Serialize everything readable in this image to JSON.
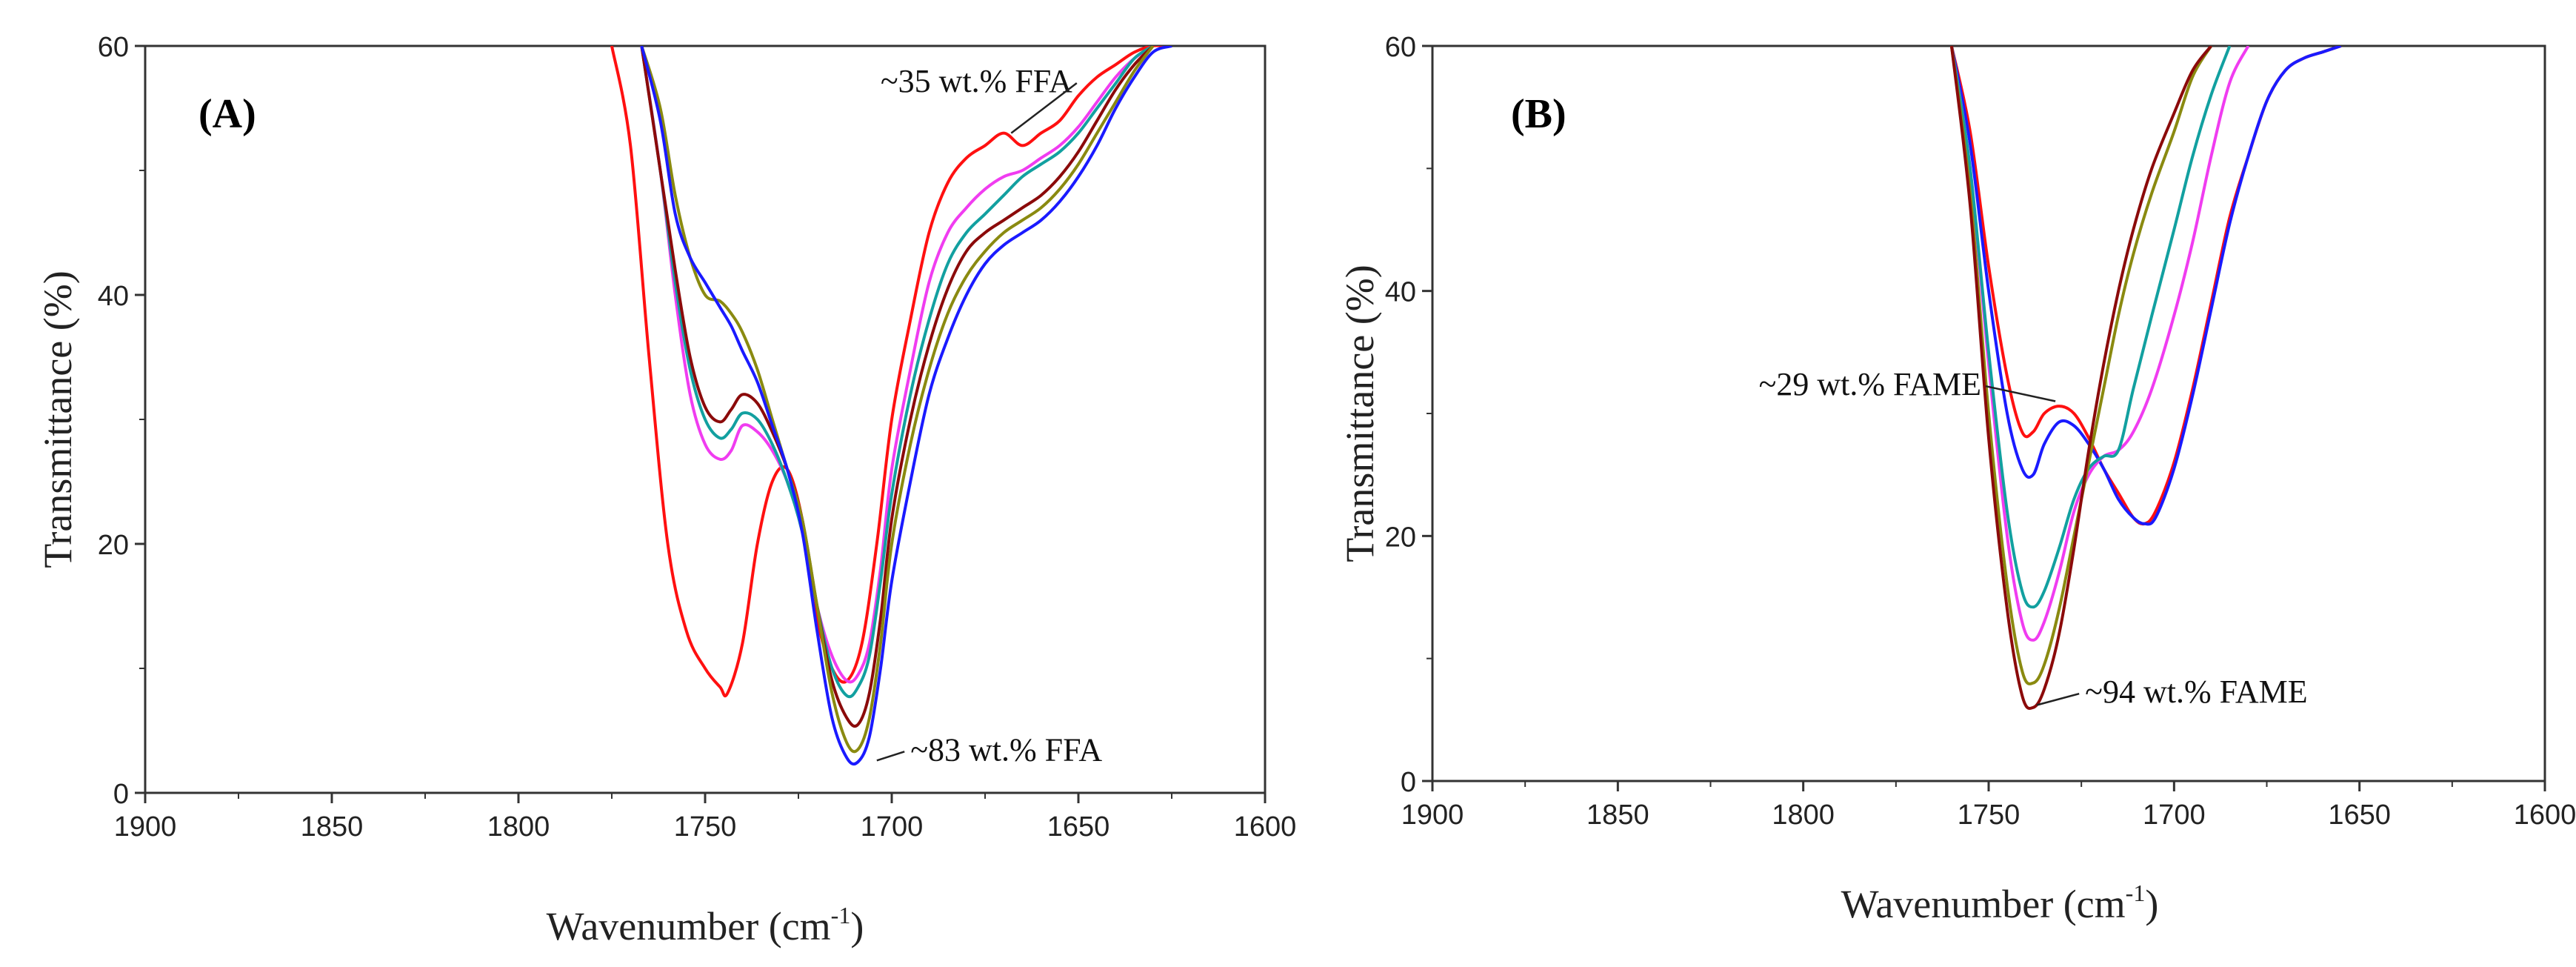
{
  "chart_data": [
    {
      "type": "line",
      "panel_label": "(A)",
      "xlabel": "Wavenumber (cm",
      "xlabel_sup": "-1",
      "xlabel_close": ")",
      "ylabel": "Transmittance (%)",
      "xlim": [
        1900,
        1600
      ],
      "ylim": [
        0,
        60
      ],
      "xticks": [
        1900,
        1850,
        1800,
        1750,
        1700,
        1650,
        1600
      ],
      "yticks": [
        0,
        20,
        40,
        60
      ],
      "annotations": [
        {
          "text": "~35 wt.% FFA",
          "x": 1703,
          "y": 56.3,
          "target_x": 1668,
          "target_y": 53
        },
        {
          "text": "~83 wt.% FFA",
          "x": 1695,
          "y": 2.6,
          "target_x": 1704,
          "target_y": 2.6
        }
      ],
      "series": [
        {
          "name": "~35 wt.% FFA",
          "color": "#ff1010",
          "x": [
            1775,
            1770,
            1765,
            1760,
            1755,
            1750,
            1746,
            1744,
            1740,
            1736,
            1732,
            1728,
            1724,
            1720,
            1716,
            1712,
            1708,
            1704,
            1700,
            1695,
            1690,
            1685,
            1680,
            1675,
            1670,
            1665,
            1660,
            1655,
            1650,
            1645,
            1640,
            1635,
            1630,
            1625
          ],
          "y": [
            60,
            52,
            35,
            20,
            13,
            10,
            8.5,
            8,
            12,
            20,
            25,
            26,
            22,
            14,
            10,
            9,
            12,
            20,
            30,
            38,
            45,
            49,
            51,
            52,
            53,
            52,
            53,
            54,
            56,
            57.5,
            58.5,
            59.5,
            60,
            60
          ]
        },
        {
          "name": "magenta",
          "color": "#f03cf0",
          "x": [
            1767,
            1762,
            1758,
            1754,
            1750,
            1746,
            1743,
            1740,
            1736,
            1732,
            1728,
            1724,
            1720,
            1716,
            1712,
            1709,
            1706,
            1703,
            1700,
            1695,
            1690,
            1685,
            1680,
            1675,
            1670,
            1665,
            1660,
            1655,
            1650,
            1645,
            1640,
            1635,
            1630
          ],
          "y": [
            60,
            50,
            40,
            32,
            28,
            26.8,
            27.5,
            29.5,
            29,
            27.5,
            25,
            21,
            15,
            11,
            9,
            9.5,
            12,
            18,
            26,
            34,
            41,
            45,
            47,
            48.5,
            49.5,
            50,
            51,
            52,
            53.5,
            55.5,
            57.5,
            59,
            60
          ]
        },
        {
          "name": "teal",
          "color": "#12a0a0",
          "x": [
            1767,
            1762,
            1758,
            1754,
            1750,
            1746,
            1743,
            1740,
            1736,
            1732,
            1728,
            1724,
            1720,
            1716,
            1712,
            1709,
            1706,
            1703,
            1700,
            1695,
            1690,
            1685,
            1680,
            1675,
            1670,
            1665,
            1660,
            1655,
            1650,
            1645,
            1640,
            1635,
            1630
          ],
          "y": [
            60,
            50,
            41,
            34,
            30,
            28.5,
            29.2,
            30.5,
            30,
            28,
            25,
            21,
            15,
            10,
            7.8,
            8.5,
            11,
            17,
            24,
            32,
            38,
            42.5,
            45,
            46.5,
            48,
            49.5,
            50.5,
            51.5,
            53,
            55,
            57,
            59,
            60
          ]
        },
        {
          "name": "brown",
          "color": "#8b0a0a",
          "x": [
            1767,
            1762,
            1758,
            1754,
            1750,
            1746,
            1743,
            1740,
            1736,
            1732,
            1728,
            1724,
            1720,
            1716,
            1712,
            1709,
            1706,
            1703,
            1700,
            1695,
            1690,
            1685,
            1680,
            1675,
            1670,
            1665,
            1660,
            1655,
            1650,
            1645,
            1640,
            1635,
            1630
          ],
          "y": [
            60,
            50,
            42,
            35,
            31,
            29.8,
            30.8,
            32,
            31.3,
            29,
            26,
            22,
            15,
            9,
            6,
            5.5,
            8,
            14,
            22,
            30,
            36,
            40.5,
            43.5,
            45,
            46,
            47,
            48,
            49.5,
            51.5,
            54,
            56.5,
            58.5,
            60
          ]
        },
        {
          "name": "olive",
          "color": "#8a8a10",
          "x": [
            1767,
            1762,
            1758,
            1754,
            1750,
            1746,
            1743,
            1740,
            1736,
            1732,
            1728,
            1724,
            1720,
            1716,
            1712,
            1709,
            1706,
            1703,
            1700,
            1695,
            1690,
            1685,
            1680,
            1675,
            1670,
            1665,
            1660,
            1655,
            1650,
            1645,
            1640,
            1635,
            1630
          ],
          "y": [
            60,
            55,
            48,
            43,
            40,
            39.5,
            38.5,
            37,
            34,
            30,
            26,
            22,
            15,
            8,
            4,
            3.5,
            6,
            12,
            20,
            28,
            34,
            38.5,
            41.5,
            43.5,
            45,
            46,
            47,
            48.5,
            50.5,
            53,
            55.5,
            58,
            60
          ]
        },
        {
          "name": "~83 wt.% FFA",
          "color": "#1a1aff",
          "x": [
            1767,
            1762,
            1758,
            1754,
            1750,
            1746,
            1743,
            1740,
            1736,
            1732,
            1728,
            1724,
            1720,
            1716,
            1712,
            1709,
            1706,
            1703,
            1700,
            1695,
            1690,
            1685,
            1680,
            1675,
            1670,
            1665,
            1660,
            1655,
            1650,
            1645,
            1640,
            1635,
            1630,
            1625
          ],
          "y": [
            60,
            54,
            46.5,
            43,
            41,
            39,
            37.5,
            35.5,
            33,
            29.5,
            26,
            21,
            13,
            6,
            2.8,
            2.5,
            4.5,
            10,
            17,
            25,
            32,
            36.5,
            40,
            42.5,
            44,
            45,
            46,
            47.5,
            49.5,
            52,
            55,
            57.5,
            59.5,
            60
          ]
        }
      ]
    },
    {
      "type": "line",
      "panel_label": "(B)",
      "xlabel": "Wavenumber (cm",
      "xlabel_sup": "-1",
      "xlabel_close": ")",
      "ylabel": "Transmittance (%)",
      "xlim": [
        1900,
        1600
      ],
      "ylim": [
        0,
        60
      ],
      "xticks": [
        1900,
        1850,
        1800,
        1750,
        1700,
        1650,
        1600
      ],
      "yticks": [
        0,
        20,
        40,
        60
      ],
      "annotations": [
        {
          "text": "~29 wt.% FAME",
          "x": 1812,
          "y": 31.5,
          "target_x": 1732,
          "target_y": 31
        },
        {
          "text": "~94 wt.% FAME",
          "x": 1724,
          "y": 6.4,
          "target_x": 1737,
          "target_y": 6.2
        }
      ],
      "series": [
        {
          "name": "~29 wt.% FAME",
          "color": "#ff1010",
          "x": [
            1760,
            1755,
            1750,
            1745,
            1741,
            1738,
            1735,
            1731,
            1727,
            1723,
            1719,
            1715,
            1711,
            1708,
            1705,
            1700,
            1695,
            1690,
            1685,
            1680,
            1675,
            1670,
            1665,
            1660,
            1655
          ],
          "y": [
            60,
            53,
            42,
            33,
            28.5,
            28.5,
            30,
            30.6,
            30,
            28,
            25.5,
            23.5,
            21.5,
            21,
            22,
            26,
            32,
            39,
            46,
            51,
            55.5,
            58,
            59,
            59.5,
            60
          ]
        },
        {
          "name": "blue",
          "color": "#1a1aff",
          "x": [
            1760,
            1755,
            1750,
            1745,
            1741,
            1738,
            1735,
            1731,
            1727,
            1723,
            1719,
            1715,
            1711,
            1708,
            1705,
            1700,
            1695,
            1690,
            1685,
            1680,
            1675,
            1670,
            1665,
            1660,
            1655
          ],
          "y": [
            60,
            52,
            40,
            30,
            25.5,
            25,
            27.5,
            29.3,
            29,
            27.5,
            25.5,
            23,
            21.5,
            21,
            21.5,
            25.5,
            31.5,
            38.5,
            45.5,
            51,
            55.5,
            58,
            59,
            59.5,
            60
          ]
        },
        {
          "name": "magenta",
          "color": "#f03cf0",
          "x": [
            1760,
            1755,
            1750,
            1745,
            1741,
            1738,
            1735,
            1731,
            1727,
            1723,
            1719,
            1715,
            1711,
            1706,
            1700,
            1695,
            1690,
            1685,
            1680
          ],
          "y": [
            60,
            50,
            34,
            20,
            13,
            11.5,
            13,
            17,
            22,
            25,
            26.5,
            27,
            28.5,
            32,
            38,
            44,
            51,
            57,
            60
          ]
        },
        {
          "name": "teal",
          "color": "#12a0a0",
          "x": [
            1760,
            1755,
            1750,
            1745,
            1741,
            1738,
            1735,
            1731,
            1727,
            1723,
            1719,
            1715,
            1711,
            1706,
            1700,
            1695,
            1690,
            1685
          ],
          "y": [
            60,
            50,
            35,
            22,
            15.5,
            14.2,
            15.5,
            19,
            23,
            25.5,
            26.5,
            27,
            32,
            38,
            45,
            51,
            56,
            60
          ]
        },
        {
          "name": "olive",
          "color": "#8a8a10",
          "x": [
            1760,
            1755,
            1750,
            1745,
            1741,
            1738,
            1735,
            1731,
            1727,
            1723,
            1719,
            1715,
            1711,
            1706,
            1700,
            1695,
            1690
          ],
          "y": [
            60,
            48,
            30,
            16,
            9,
            8,
            9.5,
            14,
            20,
            26,
            32,
            38,
            43,
            48,
            53,
            57.5,
            60
          ]
        },
        {
          "name": "~94 wt.% FAME",
          "color": "#8b0a0a",
          "x": [
            1760,
            1755,
            1750,
            1745,
            1741,
            1738,
            1735,
            1731,
            1727,
            1723,
            1719,
            1715,
            1711,
            1706,
            1700,
            1695,
            1690
          ],
          "y": [
            60,
            47,
            28,
            14,
            7,
            6,
            7.5,
            12,
            19,
            27,
            34,
            40,
            45,
            50,
            54.5,
            58,
            60
          ]
        }
      ]
    }
  ]
}
